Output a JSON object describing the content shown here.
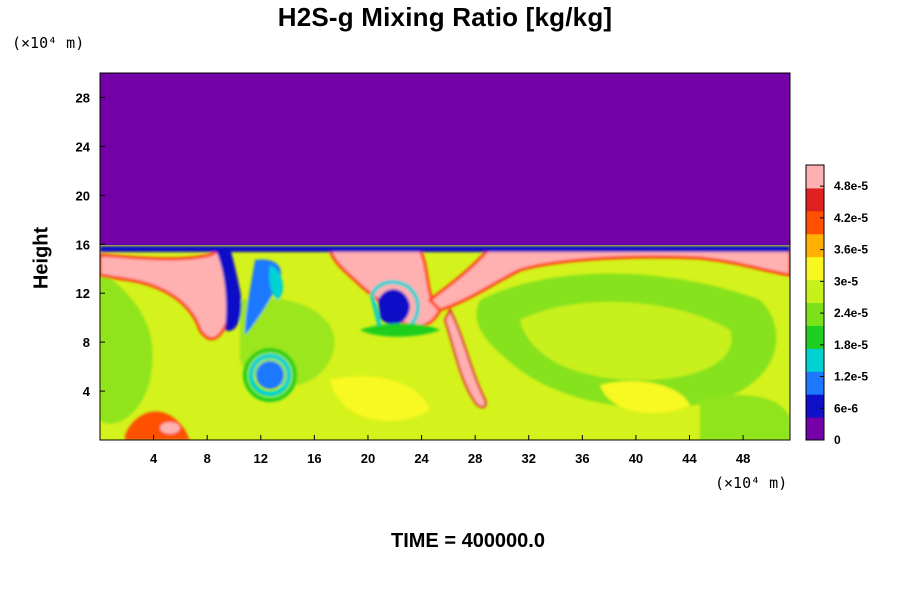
{
  "chart_data": {
    "type": "heatmap",
    "title": "H2S-g Mixing Ratio [kg/kg]",
    "ylabel": "Height",
    "x_unit": "(×10⁴ m)",
    "y_unit": "(×10⁴ m)",
    "xlim": [
      0,
      51.5
    ],
    "ylim": [
      0,
      30
    ],
    "x_ticks": [
      4,
      8,
      12,
      16,
      20,
      24,
      28,
      32,
      36,
      40,
      44,
      48
    ],
    "y_ticks": [
      4,
      8,
      12,
      16,
      20,
      24,
      28
    ],
    "colorbar": {
      "min": 0,
      "max": 5.2e-05,
      "tick_values": [
        0,
        6e-06,
        1.2e-05,
        1.8e-05,
        2.4e-05,
        3e-05,
        3.6e-05,
        4.2e-05,
        4.8e-05
      ],
      "tick_labels": [
        "0",
        "6e-6",
        "1.2e-5",
        "1.8e-5",
        "2.4e-5",
        "3e-5",
        "3.6e-5",
        "4.2e-5",
        "4.8e-5"
      ],
      "colors": [
        "#7400a8",
        "#1010c8",
        "#1e78ff",
        "#00d2d2",
        "#1fcf1f",
        "#7be21a",
        "#c8f01a",
        "#f8f820",
        "#ffb000",
        "#ff5000",
        "#e02020",
        "#ffb0b0"
      ]
    },
    "field_notes": "Upper layer (above about 15.5) is uniformly 0. Below about 15, the field is mostly 3e-5 to 3.6e-5 with high values (> 4.8e-5) along a band near heights 13-15 and along plume edges; low-value pockets near x = 10-14 (height 10-14), x = 12 (height 5), and x = 22 (height 11).",
    "footer": "TIME = 400000.0"
  }
}
